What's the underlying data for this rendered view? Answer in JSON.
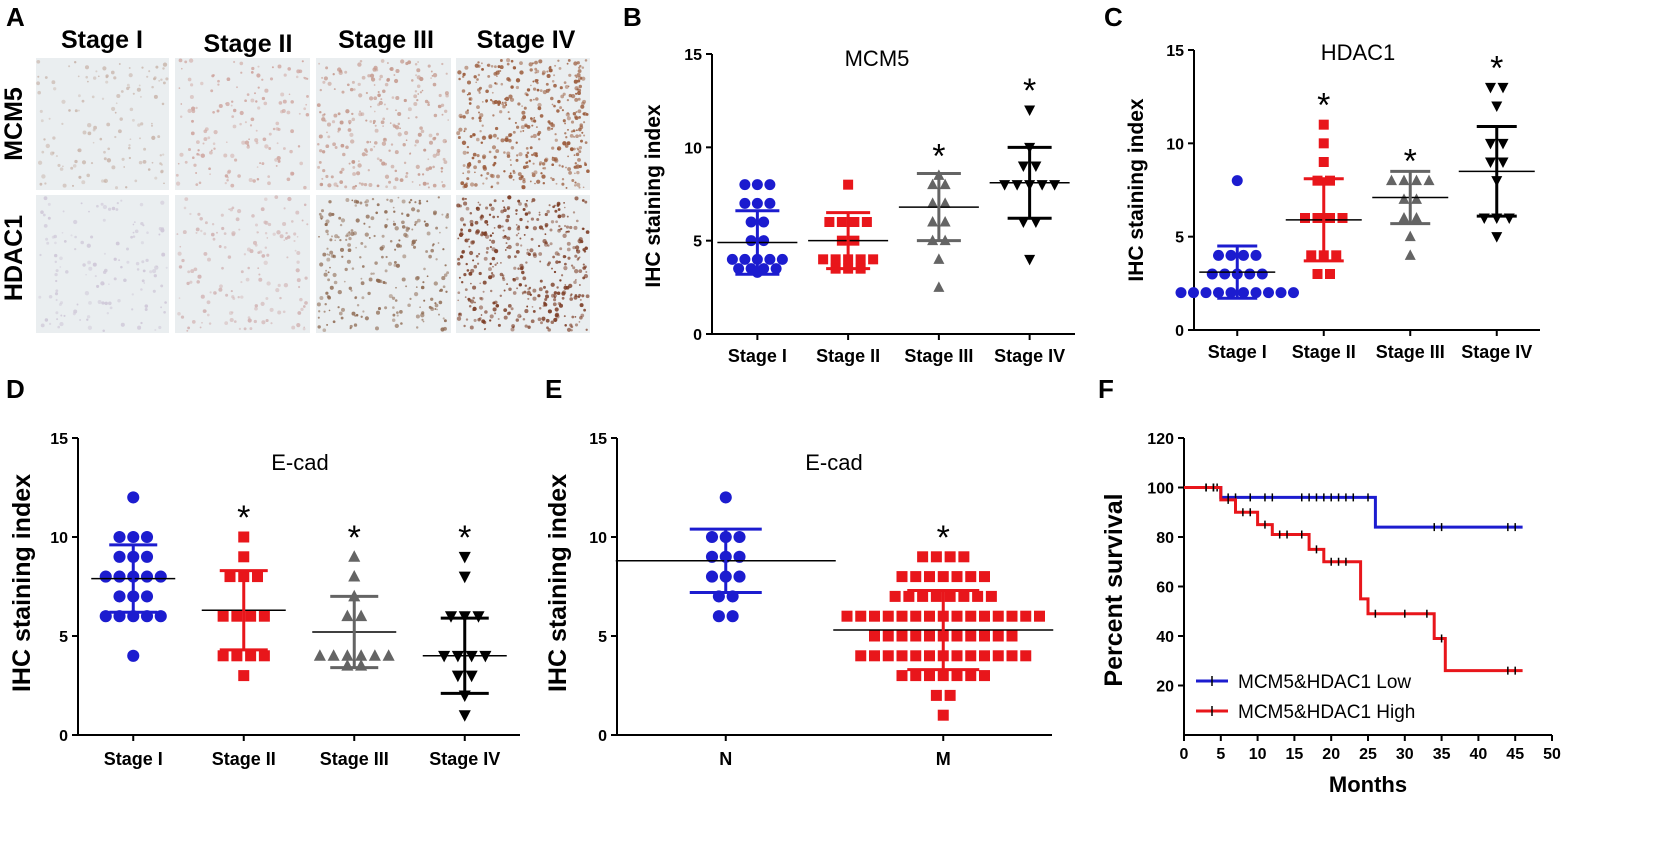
{
  "panel_a": {
    "label": "A",
    "columns": [
      "Stage I",
      "Stage II",
      "Stage III",
      "Stage IV"
    ],
    "rows": [
      "MCM5",
      "HDAC1"
    ],
    "tiles": [
      [
        "#c9b6ac",
        "#cfa6a0",
        "#c59a8e",
        "#9a5a3a"
      ],
      [
        "#cfc8d8",
        "#d2b4b4",
        "#8e6a52",
        "#7a3a22"
      ]
    ]
  },
  "chart_data": [
    {
      "id": "B",
      "label": "B",
      "type": "scatter",
      "title": "MCM5",
      "ylabel": "IHC staining index",
      "xlabel": "",
      "ylim": [
        0,
        15
      ],
      "yticks": [
        0,
        5,
        10,
        15
      ],
      "categories": [
        "Stage I",
        "Stage II",
        "Stage III",
        "Stage IV"
      ],
      "series": [
        {
          "name": "Stage I",
          "color": "#1c1ccf",
          "marker": "circle",
          "mean": 4.9,
          "sd": 1.7,
          "sig": "",
          "values": [
            8,
            8,
            8,
            7,
            7,
            7,
            6,
            6,
            5,
            5,
            4,
            4,
            4,
            4,
            4,
            3.5,
            3.5,
            3.5,
            3.5,
            3.3
          ]
        },
        {
          "name": "Stage II",
          "color": "#e8161b",
          "marker": "square",
          "mean": 5.0,
          "sd": 1.5,
          "sig": "",
          "values": [
            8,
            6,
            6,
            6,
            6,
            5,
            5,
            4,
            4,
            4,
            4,
            4,
            3.5,
            3.5,
            3.5
          ]
        },
        {
          "name": "Stage III",
          "color": "#646464",
          "marker": "triangle",
          "mean": 6.8,
          "sd": 1.8,
          "sig": "*",
          "values": [
            8.5,
            8,
            8,
            7,
            7,
            6,
            6,
            5,
            5,
            4,
            2.5
          ]
        },
        {
          "name": "Stage IV",
          "color": "#000000",
          "marker": "tridown",
          "mean": 8.1,
          "sd": 1.9,
          "sig": "*",
          "values": [
            12,
            10,
            9,
            9,
            8,
            8,
            8,
            8,
            8,
            6,
            6,
            4
          ]
        }
      ]
    },
    {
      "id": "C",
      "label": "C",
      "type": "scatter",
      "title": "HDAC1",
      "ylabel": "IHC staining index",
      "xlabel": "",
      "ylim": [
        0,
        15
      ],
      "yticks": [
        0,
        5,
        10,
        15
      ],
      "categories": [
        "Stage I",
        "Stage II",
        "Stage III",
        "Stage IV"
      ],
      "series": [
        {
          "name": "Stage I",
          "color": "#1c1ccf",
          "marker": "circle",
          "mean": 3.1,
          "sd": 1.4,
          "sig": "",
          "values": [
            8,
            4,
            4,
            4,
            4,
            3,
            3,
            3,
            3,
            3,
            2,
            2,
            2,
            2,
            2,
            2,
            2,
            2,
            2,
            2
          ]
        },
        {
          "name": "Stage II",
          "color": "#e8161b",
          "marker": "square",
          "mean": 5.9,
          "sd": 2.2,
          "sig": "*",
          "values": [
            11,
            10,
            9,
            8,
            8,
            6,
            6,
            6,
            6,
            4,
            4,
            4,
            3,
            3
          ]
        },
        {
          "name": "Stage III",
          "color": "#646464",
          "marker": "triangle",
          "mean": 7.1,
          "sd": 1.4,
          "sig": "*",
          "values": [
            8,
            8,
            8,
            8,
            7,
            7,
            6,
            6,
            5,
            4
          ]
        },
        {
          "name": "Stage IV",
          "color": "#000000",
          "marker": "tridown",
          "mean": 8.5,
          "sd": 2.4,
          "sig": "*",
          "values": [
            13,
            13,
            12,
            10,
            10,
            9,
            9,
            8,
            6,
            6,
            6,
            5
          ]
        }
      ]
    },
    {
      "id": "D",
      "label": "D",
      "type": "scatter",
      "title": "E-cad",
      "ylabel": "IHC staining index",
      "xlabel": "",
      "ylim": [
        0,
        15
      ],
      "yticks": [
        0,
        5,
        10,
        15
      ],
      "categories": [
        "Stage I",
        "Stage II",
        "Stage III",
        "Stage IV"
      ],
      "series": [
        {
          "name": "Stage I",
          "color": "#1c1ccf",
          "marker": "circle",
          "mean": 7.9,
          "sd": 1.7,
          "sig": "",
          "values": [
            12,
            10,
            10,
            10,
            9,
            9,
            9,
            8,
            8,
            8,
            8,
            8,
            7,
            7,
            7,
            6,
            6,
            6,
            6,
            6,
            4
          ]
        },
        {
          "name": "Stage II",
          "color": "#e8161b",
          "marker": "square",
          "mean": 6.3,
          "sd": 2.0,
          "sig": "*",
          "values": [
            10,
            9,
            8,
            8,
            8,
            6,
            6,
            6,
            6,
            4,
            4,
            4,
            4,
            3
          ]
        },
        {
          "name": "Stage III",
          "color": "#646464",
          "marker": "triangle",
          "mean": 5.2,
          "sd": 1.8,
          "sig": "*",
          "values": [
            9,
            8,
            7,
            6,
            6,
            4,
            4,
            4,
            4,
            4,
            4,
            3.5,
            3.5
          ]
        },
        {
          "name": "Stage IV",
          "color": "#000000",
          "marker": "tridown",
          "mean": 4.0,
          "sd": 1.9,
          "sig": "*",
          "values": [
            9,
            8,
            6,
            6,
            6,
            4,
            4,
            4,
            4,
            3,
            3,
            2,
            1
          ]
        }
      ]
    },
    {
      "id": "E",
      "label": "E",
      "type": "scatter",
      "title": "E-cad",
      "ylabel": "IHC staining index",
      "xlabel": "",
      "ylim": [
        0,
        15
      ],
      "yticks": [
        0,
        5,
        10,
        15
      ],
      "categories": [
        "N",
        "M"
      ],
      "series": [
        {
          "name": "N",
          "color": "#1c1ccf",
          "marker": "circle",
          "mean": 8.8,
          "sd": 1.6,
          "sig": "",
          "values": [
            12,
            10,
            10,
            10,
            9,
            9,
            9,
            8,
            8,
            8,
            7,
            7,
            6,
            6
          ]
        },
        {
          "name": "M",
          "color": "#e8161b",
          "marker": "square",
          "mean": 5.3,
          "sd": 2.0,
          "sig": "*",
          "values": [
            9,
            9,
            9,
            9,
            8,
            8,
            8,
            8,
            8,
            8,
            8,
            7,
            7,
            7,
            7,
            7,
            7,
            7,
            7,
            6,
            6,
            6,
            6,
            6,
            6,
            6,
            6,
            6,
            6,
            6,
            6,
            6,
            6,
            6,
            5,
            5,
            5,
            5,
            5,
            5,
            5,
            5,
            5,
            5,
            5,
            4,
            4,
            4,
            4,
            4,
            4,
            4,
            4,
            4,
            4,
            4,
            4,
            4,
            3,
            3,
            3,
            3,
            3,
            3,
            3,
            2,
            2,
            1
          ]
        }
      ]
    },
    {
      "id": "F",
      "label": "F",
      "type": "line",
      "title": "",
      "ylabel": "Percent survival",
      "xlabel": "Months",
      "ylim": [
        0,
        120
      ],
      "yticks": [
        20,
        40,
        60,
        80,
        100,
        120
      ],
      "xlim": [
        0,
        50
      ],
      "xticks": [
        0,
        5,
        10,
        15,
        20,
        25,
        30,
        35,
        40,
        45,
        50
      ],
      "series": [
        {
          "name": "MCM5&HDAC1 Low",
          "color": "#1c1ccf",
          "steps": [
            [
              0,
              100
            ],
            [
              5,
              100
            ],
            [
              5,
              96
            ],
            [
              26,
              96
            ],
            [
              26,
              84
            ],
            [
              46,
              84
            ]
          ],
          "censor": [
            [
              3,
              100
            ],
            [
              4,
              100
            ],
            [
              4.5,
              100
            ],
            [
              6,
              96
            ],
            [
              7,
              96
            ],
            [
              9,
              96
            ],
            [
              11,
              96
            ],
            [
              12,
              96
            ],
            [
              16,
              96
            ],
            [
              17,
              96
            ],
            [
              18,
              96
            ],
            [
              19,
              96
            ],
            [
              20,
              96
            ],
            [
              21,
              96
            ],
            [
              22,
              96
            ],
            [
              23,
              96
            ],
            [
              25,
              96
            ],
            [
              34,
              84
            ],
            [
              35,
              84
            ],
            [
              44,
              84
            ],
            [
              45,
              84
            ]
          ]
        },
        {
          "name": "MCM5&HDAC1 High",
          "color": "#e8161b",
          "steps": [
            [
              0,
              100
            ],
            [
              5,
              100
            ],
            [
              5,
              95
            ],
            [
              7,
              95
            ],
            [
              7,
              90
            ],
            [
              10,
              90
            ],
            [
              10,
              85
            ],
            [
              12,
              85
            ],
            [
              12,
              81
            ],
            [
              17,
              81
            ],
            [
              17,
              75
            ],
            [
              19,
              75
            ],
            [
              19,
              70
            ],
            [
              24,
              70
            ],
            [
              24,
              55
            ],
            [
              25,
              55
            ],
            [
              25,
              49
            ],
            [
              34,
              49
            ],
            [
              34,
              39
            ],
            [
              35.5,
              39
            ],
            [
              35.5,
              26
            ],
            [
              46,
              26
            ]
          ],
          "censor": [
            [
              3,
              100
            ],
            [
              4,
              100
            ],
            [
              6,
              95
            ],
            [
              8,
              90
            ],
            [
              9,
              90
            ],
            [
              11,
              85
            ],
            [
              13,
              81
            ],
            [
              14,
              81
            ],
            [
              16,
              81
            ],
            [
              18,
              75
            ],
            [
              20,
              70
            ],
            [
              21,
              70
            ],
            [
              22,
              70
            ],
            [
              26,
              49
            ],
            [
              30,
              49
            ],
            [
              33,
              49
            ],
            [
              35,
              39
            ],
            [
              44,
              26
            ],
            [
              45,
              26
            ]
          ]
        }
      ]
    }
  ]
}
